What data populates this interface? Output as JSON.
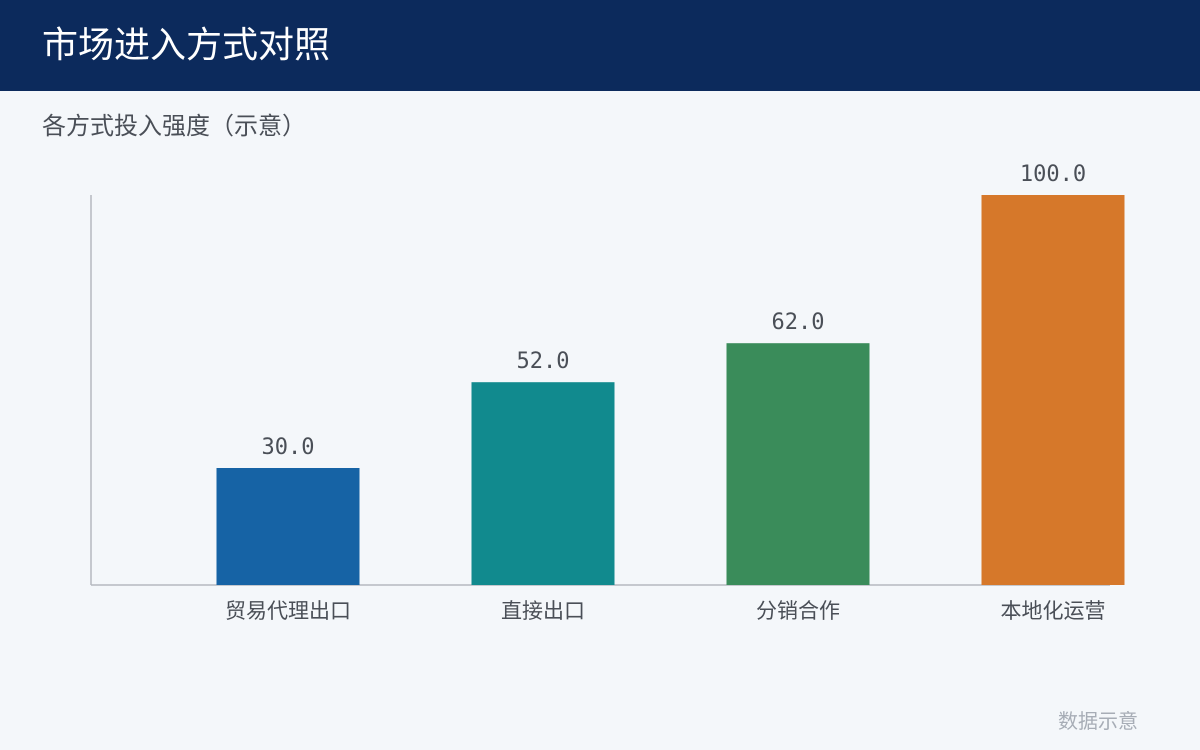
{
  "header": {
    "title": "市场进入方式对照"
  },
  "subtitle": "各方式投入强度（示意）",
  "footnote": "数据示意",
  "colors": {
    "header_bg": "#0c2a5c",
    "background": "#f4f7fa",
    "axis": "#b5b9bf",
    "label_text": "#4a4f57",
    "value_text": "#4a4f57"
  },
  "chart_data": {
    "type": "bar",
    "title": "",
    "xlabel": "",
    "ylabel": "",
    "ylim": [
      0,
      100
    ],
    "grid": false,
    "categories": [
      "贸易代理出口",
      "直接出口",
      "分销合作",
      "本地化运营"
    ],
    "values": [
      30.0,
      52.0,
      62.0,
      100.0
    ],
    "value_labels": [
      "30.0",
      "52.0",
      "62.0",
      "100.0"
    ],
    "bar_colors": [
      "#1663a5",
      "#118a8e",
      "#3a8c5a",
      "#d6782a"
    ]
  }
}
